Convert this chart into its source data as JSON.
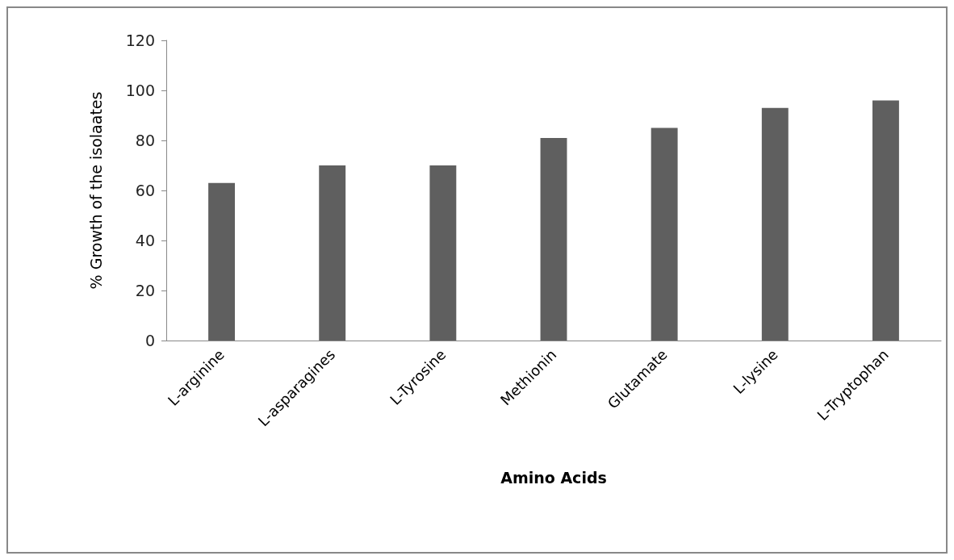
{
  "chart_data": {
    "type": "bar",
    "xlabel": "Amino Acids",
    "ylabel": "% Growth of the isolaates",
    "categories": [
      "L-arginine",
      "L-asparagines",
      "L-Tyrosine",
      "Methionin",
      "Glutamate",
      "L-lysine",
      "L-Tryptophan"
    ],
    "values": [
      63,
      70,
      70,
      81,
      85,
      93,
      96
    ],
    "color": "#5f5f5f",
    "ylim": [
      0,
      120
    ],
    "yticks": [
      0,
      20,
      40,
      60,
      80,
      100,
      120
    ],
    "grid": false
  }
}
